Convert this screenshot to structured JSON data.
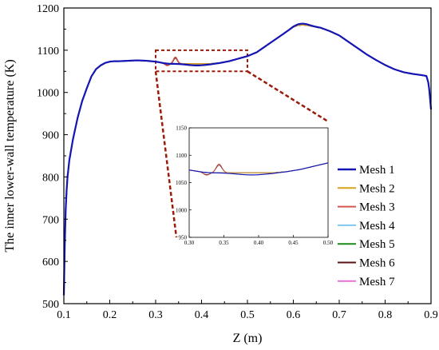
{
  "chart_data": {
    "type": "line",
    "title": "",
    "xlabel": "Z (m)",
    "ylabel": "The inner lower-wall temperature (K)",
    "xlim": [
      0.1,
      0.9
    ],
    "ylim": [
      500,
      1200
    ],
    "xticks": [
      0.1,
      0.2,
      0.3,
      0.4,
      0.5,
      0.6,
      0.7,
      0.8,
      0.9
    ],
    "yticks": [
      500,
      600,
      700,
      800,
      900,
      1000,
      1100,
      1200
    ],
    "legend_position": "right",
    "grid": false,
    "base_curve": {
      "x": [
        0.1,
        0.103,
        0.107,
        0.112,
        0.12,
        0.13,
        0.14,
        0.15,
        0.16,
        0.17,
        0.18,
        0.19,
        0.2,
        0.21,
        0.22,
        0.24,
        0.26,
        0.28,
        0.3,
        0.31,
        0.32,
        0.33,
        0.34,
        0.35,
        0.36,
        0.38,
        0.4,
        0.42,
        0.44,
        0.46,
        0.48,
        0.5,
        0.52,
        0.54,
        0.56,
        0.58,
        0.6,
        0.61,
        0.62,
        0.63,
        0.64,
        0.66,
        0.68,
        0.7,
        0.72,
        0.74,
        0.76,
        0.78,
        0.8,
        0.82,
        0.84,
        0.86,
        0.88,
        0.89,
        0.895,
        0.9
      ],
      "y": [
        520,
        700,
        790,
        840,
        890,
        940,
        980,
        1010,
        1038,
        1055,
        1064,
        1070,
        1073,
        1074,
        1074,
        1075,
        1076,
        1075,
        1073,
        1071,
        1069,
        1068,
        1068,
        1068,
        1068,
        1068,
        1068,
        1068,
        1070,
        1074,
        1080,
        1086,
        1095,
        1110,
        1125,
        1140,
        1155,
        1159,
        1160,
        1159,
        1157,
        1153,
        1145,
        1135,
        1120,
        1105,
        1090,
        1077,
        1065,
        1055,
        1048,
        1044,
        1041,
        1039,
        1020,
        960
      ]
    },
    "inset": {
      "xlim": [
        0.3,
        0.5
      ],
      "ylim": [
        950,
        1150
      ],
      "xticks": [
        0.3,
        0.35,
        0.4,
        0.45,
        0.5
      ],
      "yticks": [
        950,
        1000,
        1050,
        1100,
        1150
      ],
      "zoom_box": {
        "x": [
          0.3,
          0.5
        ],
        "y": [
          1050,
          1100
        ]
      }
    },
    "series": [
      {
        "name": "Mesh 1",
        "color": "#1515b5",
        "width": 2.2
      },
      {
        "name": "Mesh 2",
        "color": "#d6a21a",
        "width": 1.4
      },
      {
        "name": "Mesh 3",
        "color": "#d4584d",
        "width": 1.4
      },
      {
        "name": "Mesh 4",
        "color": "#7ec8f0",
        "width": 1.4
      },
      {
        "name": "Mesh 5",
        "color": "#1a8a1a",
        "width": 1.6
      },
      {
        "name": "Mesh 6",
        "color": "#5a1212",
        "width": 1.6
      },
      {
        "name": "Mesh 7",
        "color": "#e670d8",
        "width": 1.4
      }
    ],
    "colors": {
      "zoom_box": "#9b1b0b"
    }
  }
}
